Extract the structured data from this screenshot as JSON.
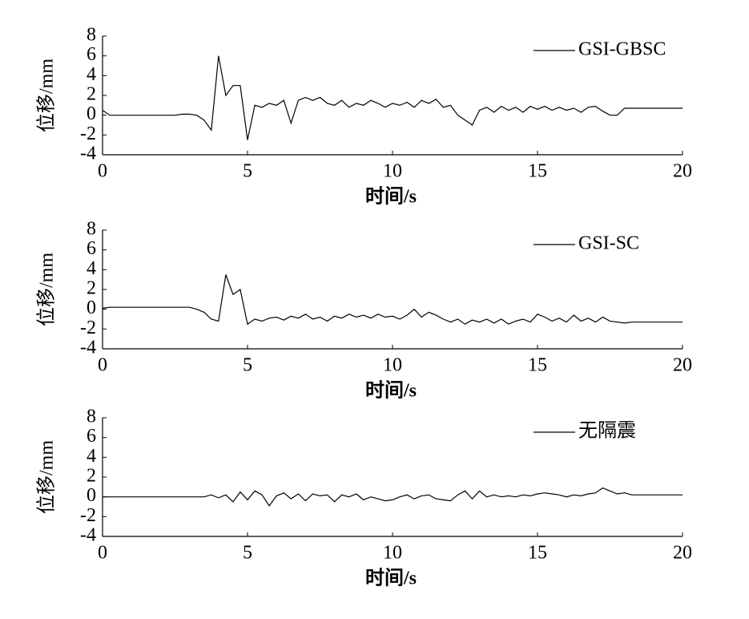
{
  "chart_data": [
    {
      "type": "line",
      "xlabel": "时间/s",
      "ylabel": "位移/mm",
      "legend": "upper right",
      "xlim": [
        0,
        20
      ],
      "ylim": [
        -4,
        8
      ],
      "xticks": [
        0,
        5,
        10,
        15,
        20
      ],
      "yticks": [
        -4,
        -2,
        0,
        2,
        4,
        6,
        8
      ],
      "x": [
        0,
        0.25,
        0.5,
        0.75,
        1,
        1.25,
        1.5,
        1.75,
        2,
        2.25,
        2.5,
        2.75,
        3,
        3.25,
        3.5,
        3.75,
        4,
        4.25,
        4.5,
        4.75,
        5,
        5.25,
        5.5,
        5.75,
        6,
        6.25,
        6.5,
        6.75,
        7,
        7.25,
        7.5,
        7.75,
        8,
        8.25,
        8.5,
        8.75,
        9,
        9.25,
        9.5,
        9.75,
        10,
        10.25,
        10.5,
        10.75,
        11,
        11.25,
        11.5,
        11.75,
        12,
        12.25,
        12.5,
        12.75,
        13,
        13.25,
        13.5,
        13.75,
        14,
        14.25,
        14.5,
        14.75,
        15,
        15.25,
        15.5,
        15.75,
        16,
        16.25,
        16.5,
        16.75,
        17,
        17.25,
        17.5,
        17.75,
        18,
        18.25,
        18.5,
        18.75,
        19,
        19.25,
        19.5,
        19.75,
        20
      ],
      "series": [
        {
          "name": "GSI-GBSC",
          "color": "#000000",
          "values": [
            0.5,
            0,
            0,
            0,
            0,
            0,
            0,
            0,
            0,
            0,
            0,
            0.1,
            0.1,
            0,
            -0.5,
            -1.5,
            6.0,
            2.0,
            3.0,
            3.0,
            -2.5,
            1.0,
            0.8,
            1.2,
            1.0,
            1.5,
            -0.8,
            1.5,
            1.8,
            1.5,
            1.8,
            1.2,
            1.0,
            1.5,
            0.8,
            1.2,
            1.0,
            1.5,
            1.2,
            0.8,
            1.2,
            1.0,
            1.3,
            0.8,
            1.5,
            1.2,
            1.6,
            0.8,
            1.0,
            0.0,
            -0.5,
            -1.0,
            0.5,
            0.8,
            0.3,
            0.9,
            0.5,
            0.8,
            0.3,
            0.9,
            0.6,
            0.9,
            0.5,
            0.8,
            0.5,
            0.7,
            0.3,
            0.8,
            0.9,
            0.4,
            0,
            0,
            0.7,
            0.7,
            0.7,
            0.7,
            0.7,
            0.7,
            0.7,
            0.7,
            0.7
          ]
        }
      ]
    },
    {
      "type": "line",
      "xlabel": "时间/s",
      "ylabel": "位移/mm",
      "legend": "upper right",
      "xlim": [
        0,
        20
      ],
      "ylim": [
        -4,
        8
      ],
      "xticks": [
        0,
        5,
        10,
        15,
        20
      ],
      "yticks": [
        -4,
        -2,
        0,
        2,
        4,
        6,
        8
      ],
      "x": [
        0,
        0.25,
        0.5,
        0.75,
        1,
        1.25,
        1.5,
        1.75,
        2,
        2.25,
        2.5,
        2.75,
        3,
        3.25,
        3.5,
        3.75,
        4,
        4.25,
        4.5,
        4.75,
        5,
        5.25,
        5.5,
        5.75,
        6,
        6.25,
        6.5,
        6.75,
        7,
        7.25,
        7.5,
        7.75,
        8,
        8.25,
        8.5,
        8.75,
        9,
        9.25,
        9.5,
        9.75,
        10,
        10.25,
        10.5,
        10.75,
        11,
        11.25,
        11.5,
        11.75,
        12,
        12.25,
        12.5,
        12.75,
        13,
        13.25,
        13.5,
        13.75,
        14,
        14.25,
        14.5,
        14.75,
        15,
        15.25,
        15.5,
        15.75,
        16,
        16.25,
        16.5,
        16.75,
        17,
        17.25,
        17.5,
        17.75,
        18,
        18.25,
        18.5,
        18.75,
        19,
        19.25,
        19.5,
        19.75,
        20
      ],
      "series": [
        {
          "name": "GSI-SC",
          "color": "#000000",
          "values": [
            0.1,
            0.2,
            0.2,
            0.2,
            0.2,
            0.2,
            0.2,
            0.2,
            0.2,
            0.2,
            0.2,
            0.2,
            0.2,
            0,
            -0.3,
            -1.0,
            -1.2,
            3.5,
            1.5,
            2.0,
            -1.5,
            -1.0,
            -1.2,
            -0.9,
            -0.8,
            -1.1,
            -0.7,
            -0.9,
            -0.5,
            -1.0,
            -0.8,
            -1.2,
            -0.7,
            -0.9,
            -0.5,
            -0.8,
            -0.6,
            -0.9,
            -0.5,
            -0.8,
            -0.7,
            -1.0,
            -0.6,
            0.0,
            -0.8,
            -0.3,
            -0.6,
            -1.0,
            -1.3,
            -1.0,
            -1.5,
            -1.1,
            -1.3,
            -1.0,
            -1.4,
            -1.0,
            -1.5,
            -1.2,
            -1.0,
            -1.3,
            -0.5,
            -0.8,
            -1.2,
            -0.9,
            -1.3,
            -0.6,
            -1.2,
            -0.9,
            -1.3,
            -0.8,
            -1.2,
            -1.3,
            -1.4,
            -1.3,
            -1.3,
            -1.3,
            -1.3,
            -1.3,
            -1.3,
            -1.3,
            -1.3
          ]
        }
      ]
    },
    {
      "type": "line",
      "xlabel": "时间/s",
      "ylabel": "位移/mm",
      "legend": "upper right",
      "xlim": [
        0,
        20
      ],
      "ylim": [
        -4,
        8
      ],
      "xticks": [
        0,
        5,
        10,
        15,
        20
      ],
      "yticks": [
        -4,
        -2,
        0,
        2,
        4,
        6,
        8
      ],
      "x": [
        0,
        0.25,
        0.5,
        0.75,
        1,
        1.25,
        1.5,
        1.75,
        2,
        2.25,
        2.5,
        2.75,
        3,
        3.25,
        3.5,
        3.75,
        4,
        4.25,
        4.5,
        4.75,
        5,
        5.25,
        5.5,
        5.75,
        6,
        6.25,
        6.5,
        6.75,
        7,
        7.25,
        7.5,
        7.75,
        8,
        8.25,
        8.5,
        8.75,
        9,
        9.25,
        9.5,
        9.75,
        10,
        10.25,
        10.5,
        10.75,
        11,
        11.25,
        11.5,
        11.75,
        12,
        12.25,
        12.5,
        12.75,
        13,
        13.25,
        13.5,
        13.75,
        14,
        14.25,
        14.5,
        14.75,
        15,
        15.25,
        15.5,
        15.75,
        16,
        16.25,
        16.5,
        16.75,
        17,
        17.25,
        17.5,
        17.75,
        18,
        18.25,
        18.5,
        18.75,
        19,
        19.25,
        19.5,
        19.75,
        20
      ],
      "series": [
        {
          "name": "无隔震",
          "color": "#000000",
          "values": [
            0,
            0,
            0,
            0,
            0,
            0,
            0,
            0,
            0,
            0,
            0,
            0,
            0,
            0,
            0,
            0.2,
            -0.1,
            0.2,
            -0.5,
            0.5,
            -0.3,
            0.6,
            0.2,
            -0.9,
            0.1,
            0.4,
            -0.2,
            0.3,
            -0.4,
            0.3,
            0.1,
            0.2,
            -0.5,
            0.2,
            0.0,
            0.3,
            -0.3,
            0.0,
            -0.2,
            -0.4,
            -0.3,
            0.0,
            0.2,
            -0.2,
            0.1,
            0.2,
            -0.2,
            -0.3,
            -0.4,
            0.2,
            0.6,
            -0.2,
            0.6,
            0.0,
            0.2,
            0.0,
            0.1,
            0.0,
            0.2,
            0.1,
            0.3,
            0.4,
            0.3,
            0.2,
            0.0,
            0.2,
            0.1,
            0.3,
            0.4,
            0.9,
            0.6,
            0.3,
            0.4,
            0.2,
            0.2,
            0.2,
            0.2,
            0.2,
            0.2,
            0.2,
            0.2
          ]
        }
      ]
    }
  ]
}
